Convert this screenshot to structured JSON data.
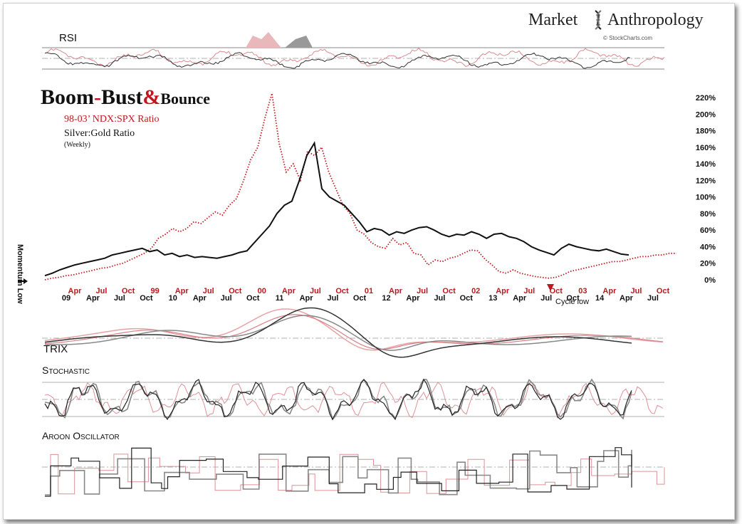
{
  "brand": {
    "left": "Market",
    "right": "Anthropology",
    "credit": "© StockCharts.com"
  },
  "title": {
    "part1": "Boom",
    "dash": "-",
    "part2": "Bust",
    "amp": "&",
    "part3": "Bounce"
  },
  "legend": {
    "series1": "98-03’ NDX:SPX Ratio",
    "series2": "Silver:Gold Ratio",
    "note": "(Weekly)"
  },
  "side_label": "Momentum Low",
  "annotation": "Cycle low",
  "panels": {
    "rsi": "RSI",
    "trix": "TRIX",
    "stochastic": "Stochastic",
    "aroon": "Aroon Oscillator"
  },
  "colors": {
    "red": "#c0171f",
    "black": "#111111",
    "pink": "#e6a3a6",
    "grey": "#777777",
    "band": "#e7b7ba"
  },
  "chart_data": {
    "type": "line",
    "y_ticks": [
      "220%",
      "200%",
      "180%",
      "160%",
      "140%",
      "120%",
      "100%",
      "80%",
      "60%",
      "40%",
      "20%",
      "0%"
    ],
    "ylim": [
      0,
      220
    ],
    "x_labels_red": [
      "Apr",
      "Jul",
      "Oct",
      "99",
      "Apr",
      "Jul",
      "Oct",
      "00",
      "Apr",
      "Jul",
      "Oct",
      "01",
      "Apr",
      "Jul",
      "Oct",
      "02",
      "Apr",
      "Jul",
      "Oct",
      "03",
      "Apr",
      "Jul",
      "Oct"
    ],
    "x_labels_black": [
      "09",
      "Apr",
      "Jul",
      "Oct",
      "10",
      "Apr",
      "Jul",
      "Oct",
      "11",
      "Apr",
      "Jul",
      "Oct",
      "12",
      "Apr",
      "Jul",
      "Oct",
      "13",
      "Apr",
      "Jul",
      "Oct",
      "14",
      "Apr",
      "Jul"
    ],
    "series": [
      {
        "name": "98-03’ NDX:SPX Ratio",
        "color": "#c0171f",
        "style": "dotted",
        "values": [
          0,
          2,
          3,
          5,
          6,
          8,
          10,
          12,
          14,
          15,
          18,
          20,
          24,
          28,
          32,
          38,
          50,
          55,
          62,
          58,
          62,
          70,
          68,
          75,
          82,
          78,
          90,
          98,
          120,
          145,
          160,
          195,
          225,
          165,
          130,
          140,
          120,
          155,
          150,
          160,
          130,
          110,
          90,
          80,
          60,
          55,
          45,
          40,
          38,
          50,
          42,
          45,
          32,
          30,
          18,
          24,
          22,
          26,
          28,
          32,
          36,
          35,
          25,
          18,
          10,
          8,
          12,
          8,
          6,
          4,
          3,
          2,
          3,
          6,
          10,
          12,
          14,
          16,
          18,
          20,
          22,
          22,
          24,
          26,
          28,
          28,
          30,
          30,
          32,
          32
        ]
      },
      {
        "name": "Silver:Gold Ratio",
        "color": "#111111",
        "style": "solid",
        "values": [
          5,
          8,
          12,
          15,
          18,
          20,
          22,
          24,
          26,
          30,
          32,
          34,
          36,
          38,
          34,
          36,
          30,
          32,
          28,
          30,
          27,
          28,
          27,
          26,
          28,
          30,
          33,
          35,
          45,
          55,
          65,
          80,
          90,
          95,
          120,
          150,
          165,
          110,
          100,
          95,
          90,
          80,
          70,
          58,
          62,
          60,
          54,
          58,
          56,
          60,
          63,
          64,
          60,
          55,
          52,
          55,
          54,
          58,
          55,
          50,
          55,
          56,
          52,
          50,
          46,
          40,
          36,
          33,
          30,
          38,
          43,
          40,
          38,
          36,
          35,
          37,
          34,
          31,
          30
        ]
      }
    ]
  }
}
